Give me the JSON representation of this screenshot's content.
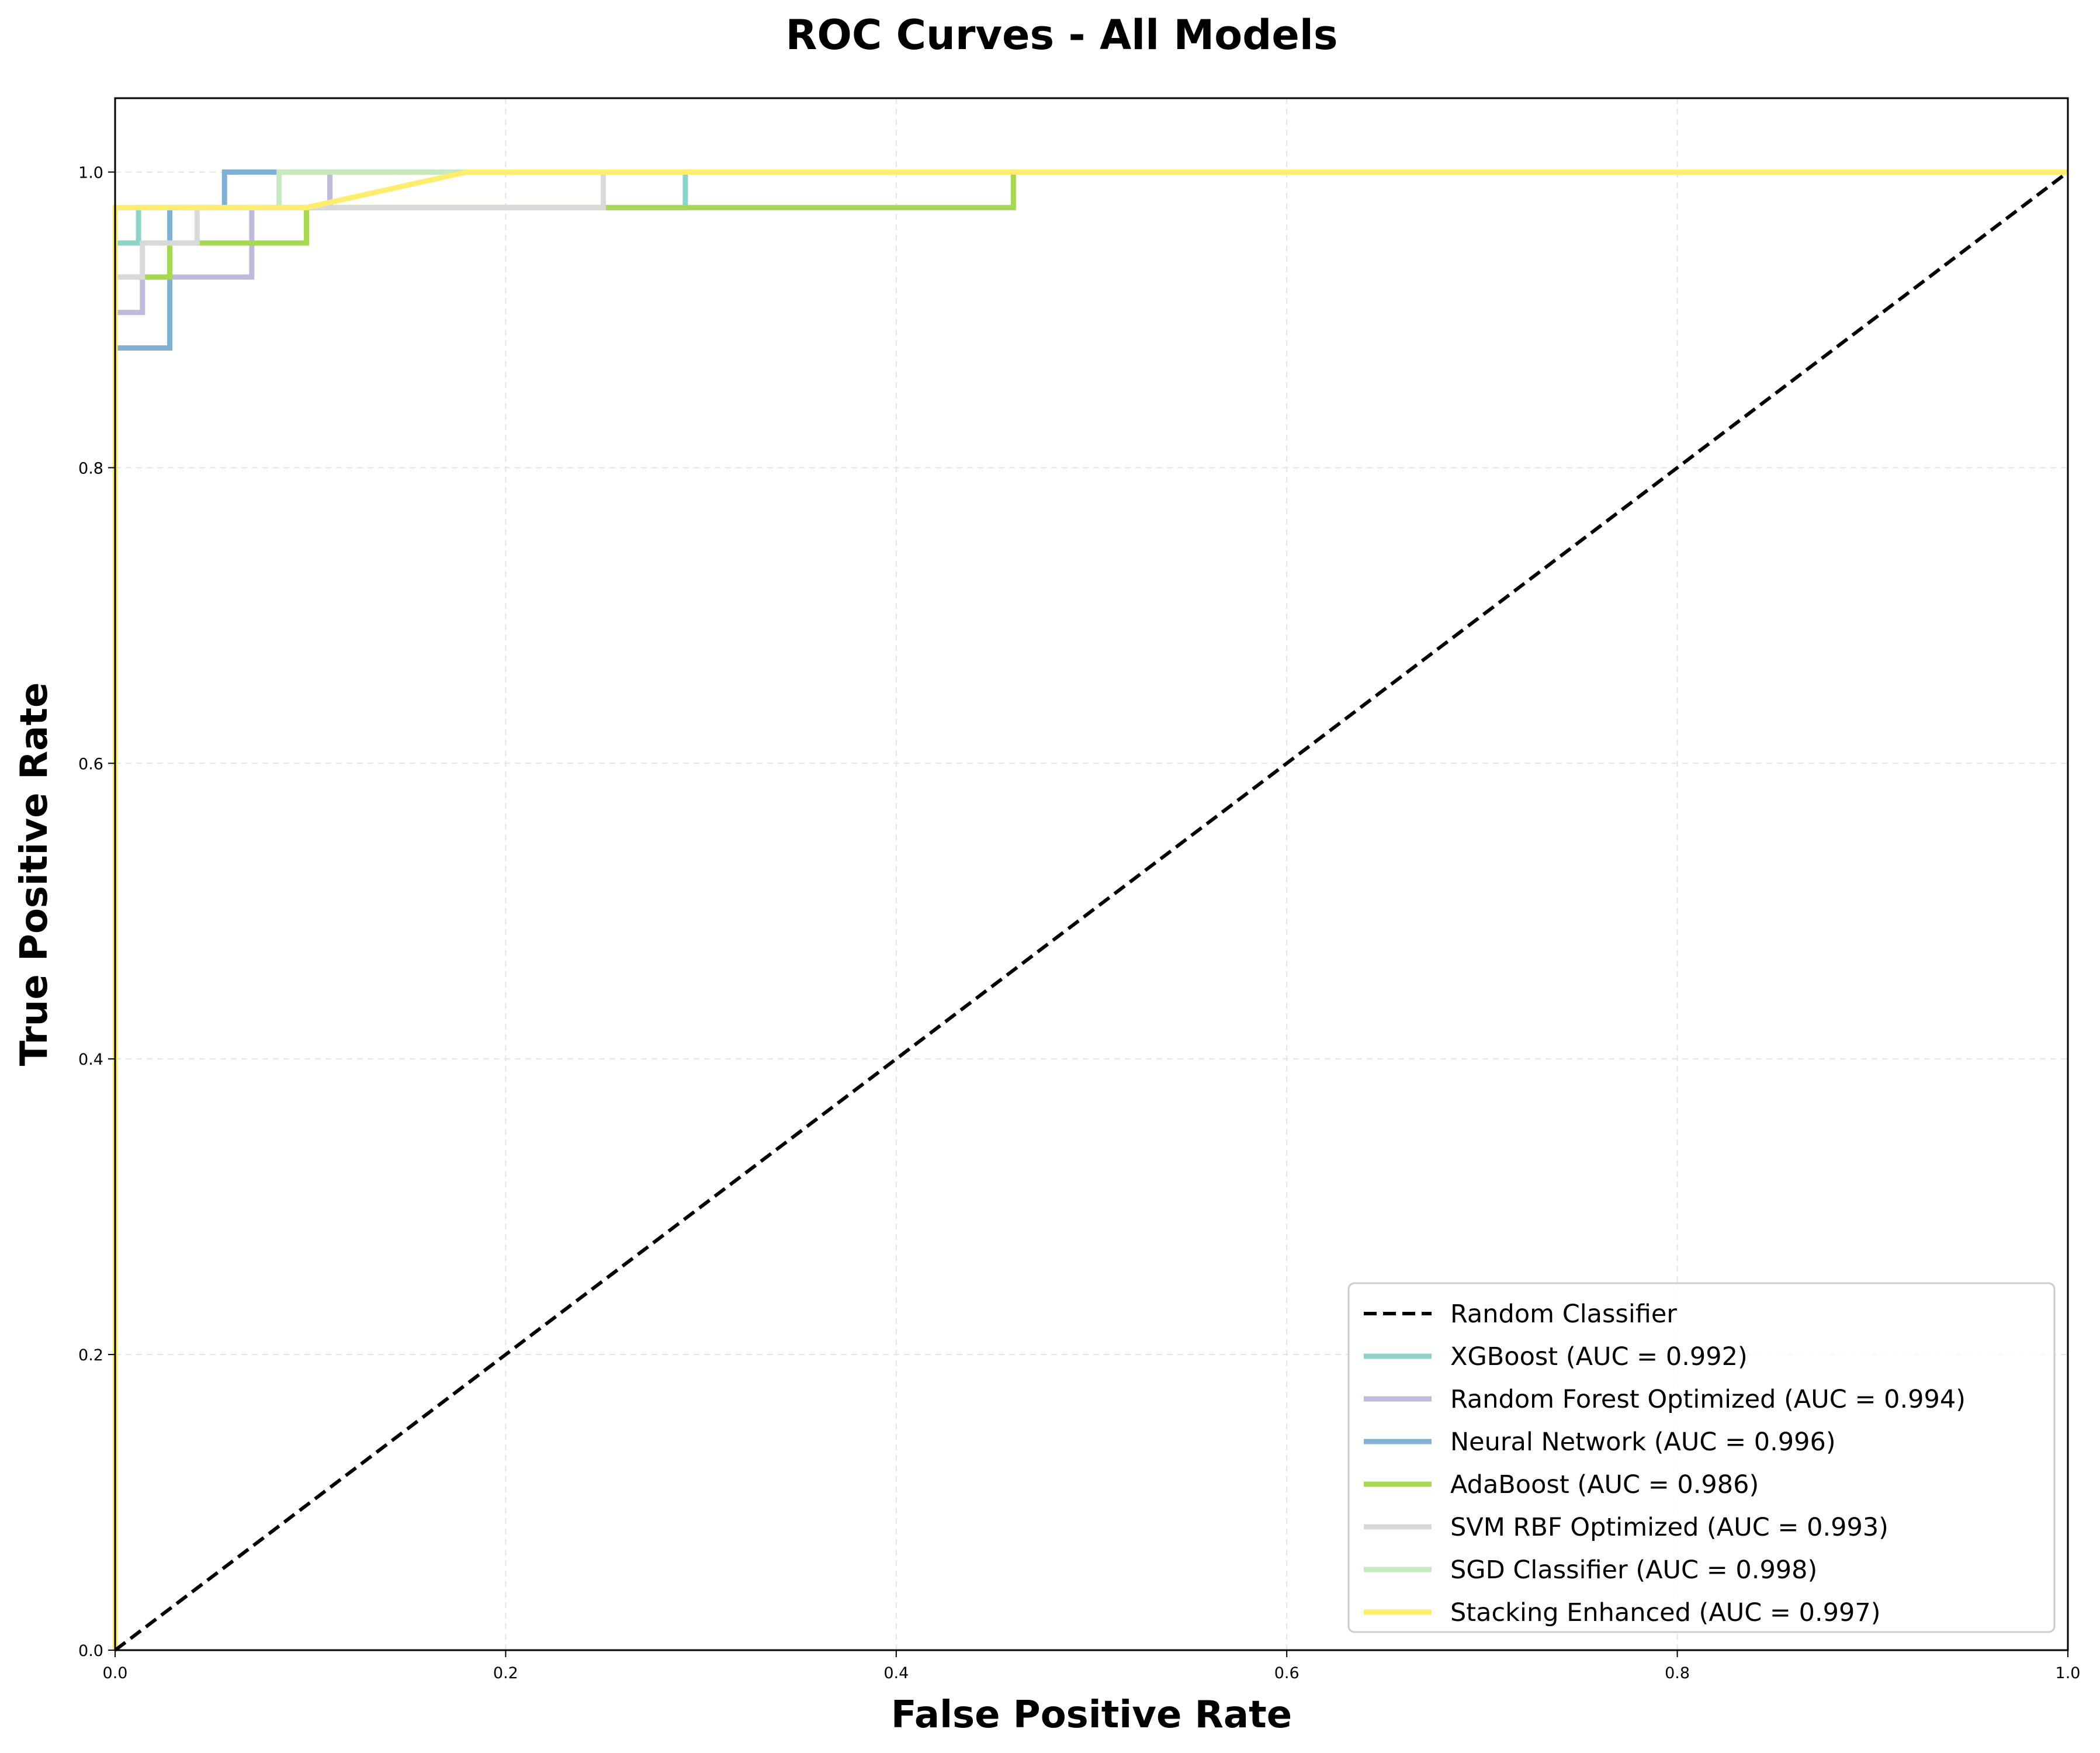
{
  "chart_data": {
    "type": "line",
    "title": "ROC Curves - All Models",
    "xlabel": "False Positive Rate",
    "ylabel": "True Positive Rate",
    "xlim": [
      0,
      1
    ],
    "ylim": [
      0,
      1.05
    ],
    "xticks": [
      "0.0",
      "0.2",
      "0.4",
      "0.6",
      "0.8",
      "1.0"
    ],
    "yticks": [
      "0.0",
      "0.2",
      "0.4",
      "0.6",
      "0.8",
      "1.0"
    ],
    "grid": true,
    "legend_position": "lower-right",
    "series": [
      {
        "name": "Random Classifier",
        "color": "#000000",
        "dashed": true,
        "x": [
          0,
          1
        ],
        "y": [
          0,
          1
        ]
      },
      {
        "name": "XGBoost (AUC = 0.992)",
        "color": "#8dd3c7",
        "x": [
          0,
          0,
          0.012,
          0.012,
          0.292,
          0.292,
          1
        ],
        "y": [
          0,
          0.952,
          0.952,
          0.976,
          0.976,
          1,
          1
        ]
      },
      {
        "name": "Random Forest Optimized (AUC = 0.994)",
        "color": "#bebada",
        "x": [
          0,
          0,
          0.014,
          0.014,
          0.07,
          0.07,
          0.11,
          0.11,
          1
        ],
        "y": [
          0,
          0.905,
          0.905,
          0.929,
          0.929,
          0.976,
          0.976,
          1,
          1
        ]
      },
      {
        "name": "Neural Network (AUC = 0.996)",
        "color": "#80b1d3",
        "x": [
          0,
          0,
          0.028,
          0.028,
          0.056,
          0.056,
          1
        ],
        "y": [
          0,
          0.881,
          0.881,
          0.976,
          0.976,
          1,
          1
        ]
      },
      {
        "name": "AdaBoost (AUC = 0.986)",
        "color": "#a6d854",
        "x": [
          0,
          0,
          0.028,
          0.028,
          0.098,
          0.098,
          0.46,
          0.46,
          1
        ],
        "y": [
          0,
          0.929,
          0.929,
          0.952,
          0.952,
          0.976,
          0.976,
          1,
          1
        ]
      },
      {
        "name": "SVM RBF Optimized (AUC = 0.993)",
        "color": "#d9d9d9",
        "x": [
          0,
          0,
          0.014,
          0.014,
          0.042,
          0.042,
          0.25,
          0.25,
          1
        ],
        "y": [
          0,
          0.929,
          0.929,
          0.952,
          0.952,
          0.976,
          0.976,
          1,
          1
        ]
      },
      {
        "name": "SGD Classifier (AUC = 0.998)",
        "color": "#c7e9c0",
        "x": [
          0,
          0,
          0.084,
          0.084,
          1
        ],
        "y": [
          0,
          0.976,
          0.976,
          1,
          1
        ]
      },
      {
        "name": "Stacking Enhanced (AUC = 0.997)",
        "color": "#ffed6f",
        "x": [
          0,
          0,
          0.098,
          0.18,
          1
        ],
        "y": [
          0,
          0.976,
          0.976,
          1,
          1
        ]
      }
    ]
  }
}
